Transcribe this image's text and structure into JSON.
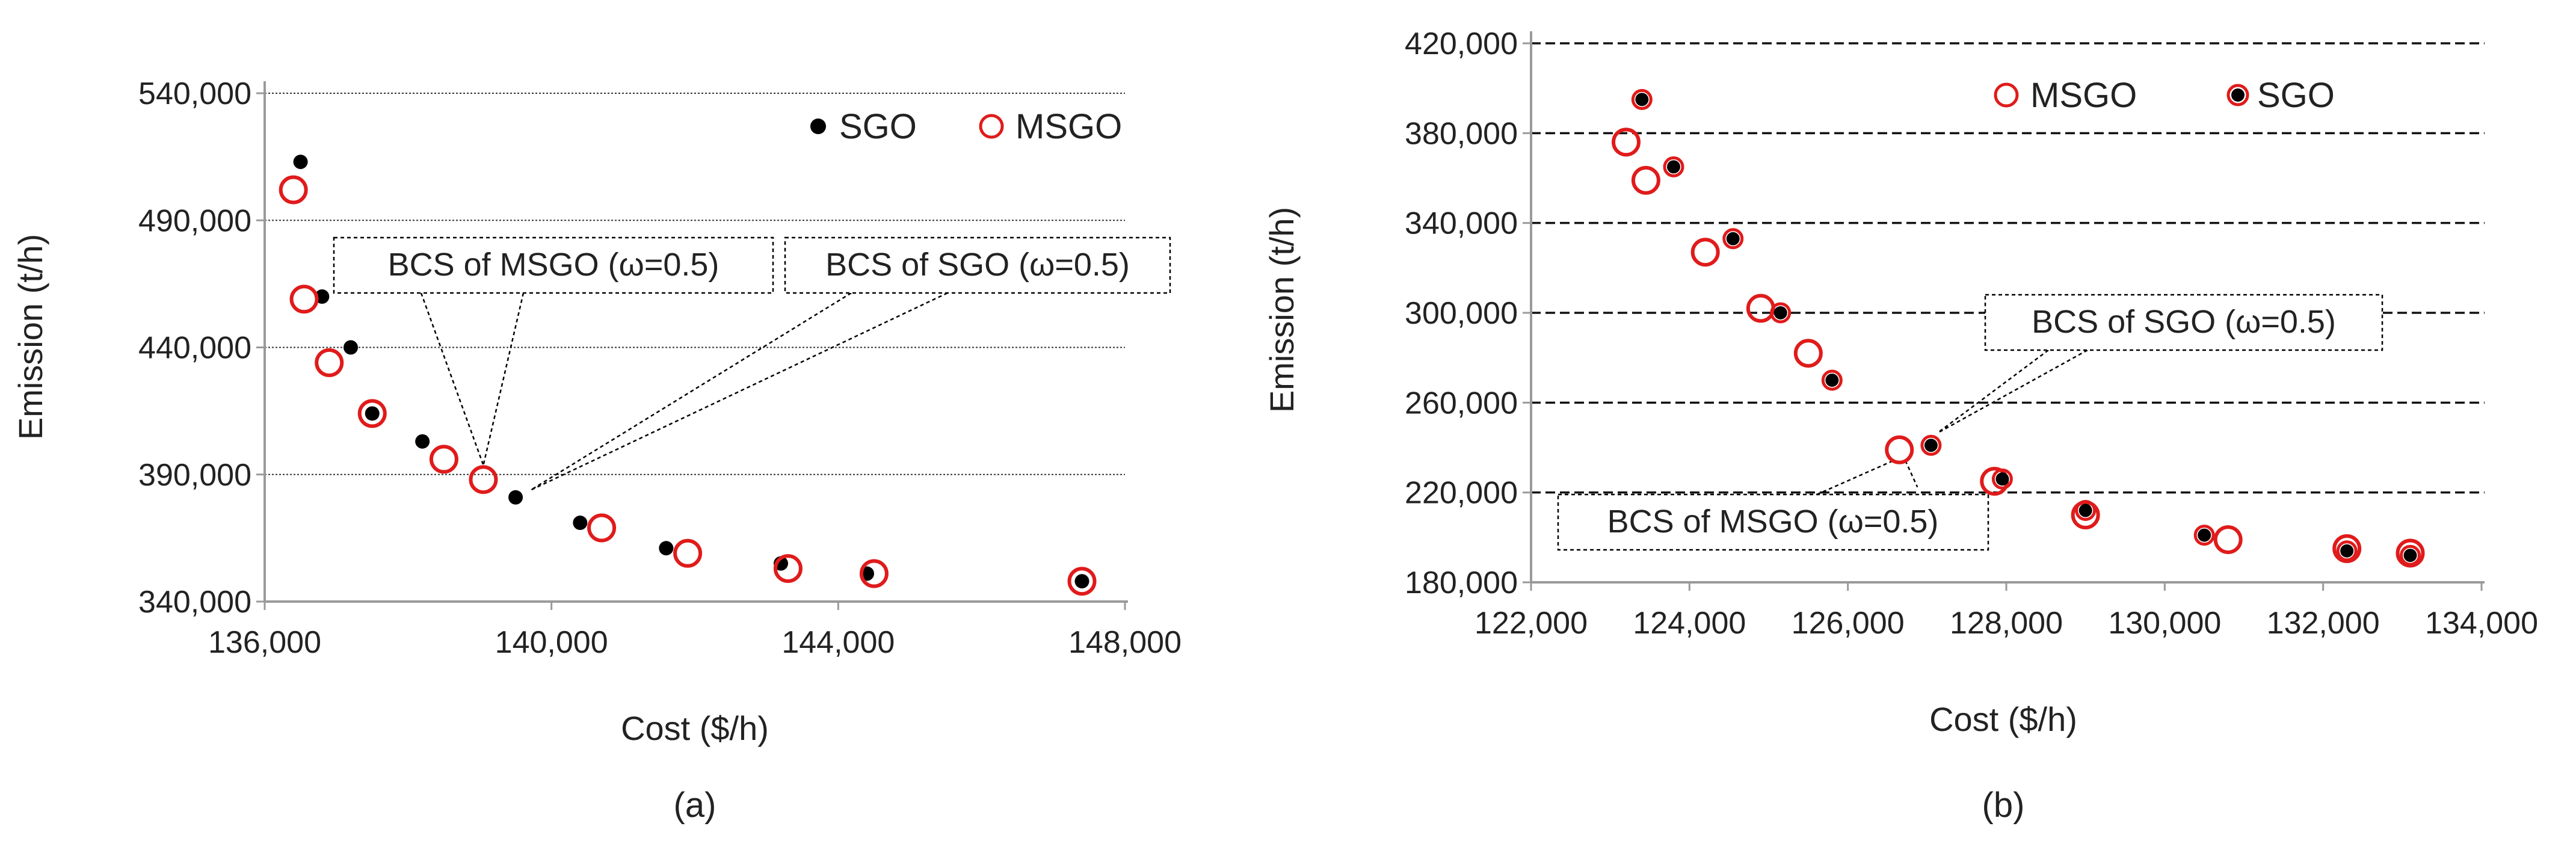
{
  "chart_data": [
    {
      "type": "scatter",
      "caption": "(a)",
      "xlabel": "Cost ($/h)",
      "ylabel": "Emission (t/h)",
      "xlim": [
        136000,
        148000
      ],
      "ylim": [
        340000,
        540000
      ],
      "xticks": [
        136000,
        140000,
        144000,
        148000
      ],
      "xtick_labels": [
        "136,000",
        "140,000",
        "144,000",
        "148,000"
      ],
      "yticks": [
        340000,
        390000,
        440000,
        490000,
        540000
      ],
      "ytick_labels": [
        "340,000",
        "390,000",
        "440,000",
        "490,000",
        "540,000"
      ],
      "grid": "horizontal",
      "legend": "top-right",
      "legend_order": [
        "SGO",
        "MSGO"
      ],
      "series": [
        {
          "name": "SGO",
          "marker": "filled-dot",
          "color": "#000000",
          "points": [
            [
              136500,
              513000
            ],
            [
              136800,
              460000
            ],
            [
              137200,
              440000
            ],
            [
              137500,
              414000
            ],
            [
              138200,
              403000
            ],
            [
              139500,
              381000
            ],
            [
              140400,
              371000
            ],
            [
              141600,
              361000
            ],
            [
              143200,
              355000
            ],
            [
              144400,
              351000
            ],
            [
              147400,
              348000
            ]
          ]
        },
        {
          "name": "MSGO",
          "marker": "open-circle",
          "color": "#e01b1b",
          "points": [
            [
              136400,
              502000
            ],
            [
              136550,
              459000
            ],
            [
              136900,
              434000
            ],
            [
              137500,
              414000
            ],
            [
              138500,
              396000
            ],
            [
              139050,
              388000
            ],
            [
              140700,
              369000
            ],
            [
              141900,
              359000
            ],
            [
              143300,
              353000
            ],
            [
              144500,
              351000
            ],
            [
              147400,
              348000
            ]
          ]
        }
      ],
      "annotations": [
        {
          "text": "BCS of MSGO (ω=0.5)",
          "target": [
            139050,
            388000
          ]
        },
        {
          "text": "BCS of SGO (ω=0.5)",
          "target": [
            139500,
            381000
          ]
        }
      ]
    },
    {
      "type": "scatter",
      "caption": "(b)",
      "xlabel": "Cost ($/h)",
      "ylabel": "Emission (t/h)",
      "xlim": [
        122000,
        134000
      ],
      "ylim": [
        180000,
        420000
      ],
      "xticks": [
        122000,
        124000,
        126000,
        128000,
        130000,
        132000,
        134000
      ],
      "xtick_labels": [
        "122,000",
        "124,000",
        "126,000",
        "128,000",
        "130,000",
        "132,000",
        "134,000"
      ],
      "yticks": [
        180000,
        220000,
        260000,
        300000,
        340000,
        380000,
        420000
      ],
      "ytick_labels": [
        "180,000",
        "220,000",
        "260,000",
        "300,000",
        "340,000",
        "380,000",
        "420,000"
      ],
      "grid": "horizontal-dashed",
      "legend": "top-right",
      "legend_order": [
        "MSGO",
        "SGO"
      ],
      "series": [
        {
          "name": "MSGO",
          "marker": "open-circle",
          "color": "#e01b1b",
          "points": [
            [
              123200,
              376000
            ],
            [
              123450,
              359000
            ],
            [
              124200,
              327000
            ],
            [
              124900,
              302000
            ],
            [
              125500,
              282000
            ],
            [
              126650,
              239000
            ],
            [
              127850,
              225000
            ],
            [
              129000,
              210000
            ],
            [
              130800,
              199000
            ],
            [
              132300,
              195000
            ],
            [
              133100,
              193000
            ]
          ]
        },
        {
          "name": "SGO",
          "marker": "dot-with-red-ring",
          "color": "#000000",
          "points": [
            [
              123400,
              395000
            ],
            [
              123800,
              365000
            ],
            [
              124550,
              333000
            ],
            [
              125150,
              300000
            ],
            [
              125800,
              270000
            ],
            [
              127050,
              241000
            ],
            [
              127950,
              226000
            ],
            [
              129000,
              212000
            ],
            [
              130500,
              201000
            ],
            [
              132300,
              194000
            ],
            [
              133100,
              192000
            ]
          ]
        }
      ],
      "annotations": [
        {
          "text": "BCS of SGO (ω=0.5)",
          "target": [
            127050,
            241000
          ]
        },
        {
          "text": "BCS of  MSGO (ω=0.5)",
          "target": [
            126650,
            239000
          ]
        }
      ]
    }
  ]
}
